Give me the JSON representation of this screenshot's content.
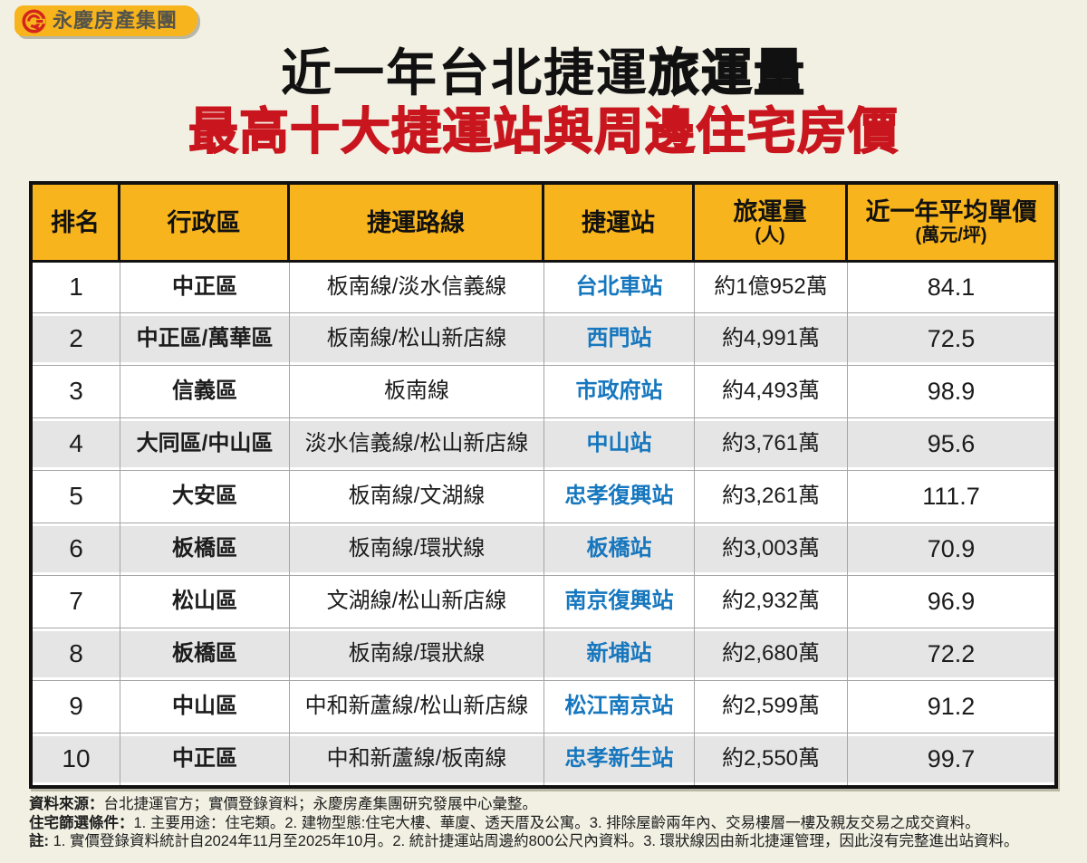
{
  "colors": {
    "page_bg": "#F2F0E3",
    "brand_yellow": "#F8B41C",
    "title_red": "#C9161E",
    "station_blue": "#1677BE",
    "alt_row_gray": "#E5E5E5",
    "logo_red": "#D3251C"
  },
  "logo": {
    "brand": "永慶房產集團"
  },
  "title": {
    "line1_normal": "近一年台北捷運",
    "line1_heavy": "旅運量",
    "line2": "最高十大捷運站與周邊住宅房價"
  },
  "table": {
    "header": {
      "rank": "排名",
      "district": "行政區",
      "lines": "捷運路線",
      "station": "捷運站",
      "ridership_main": "旅運量",
      "ridership_sub": "(人)",
      "price_main": "近一年平均單價",
      "price_sub": "(萬元/坪)"
    },
    "rows": [
      {
        "rank": "1",
        "district": "中正區",
        "lines": "板南線/淡水信義線",
        "station": "台北車站",
        "ridership": "約1億952萬",
        "price": "84.1"
      },
      {
        "rank": "2",
        "district": "中正區/萬華區",
        "lines": "板南線/松山新店線",
        "station": "西門站",
        "ridership": "約4,991萬",
        "price": "72.5"
      },
      {
        "rank": "3",
        "district": "信義區",
        "lines": "板南線",
        "station": "市政府站",
        "ridership": "約4,493萬",
        "price": "98.9"
      },
      {
        "rank": "4",
        "district": "大同區/中山區",
        "lines": "淡水信義線/松山新店線",
        "station": "中山站",
        "ridership": "約3,761萬",
        "price": "95.6"
      },
      {
        "rank": "5",
        "district": "大安區",
        "lines": "板南線/文湖線",
        "station": "忠孝復興站",
        "ridership": "約3,261萬",
        "price": "111.7"
      },
      {
        "rank": "6",
        "district": "板橋區",
        "lines": "板南線/環狀線",
        "station": "板橋站",
        "ridership": "約3,003萬",
        "price": "70.9"
      },
      {
        "rank": "7",
        "district": "松山區",
        "lines": "文湖線/松山新店線",
        "station": "南京復興站",
        "ridership": "約2,932萬",
        "price": "96.9"
      },
      {
        "rank": "8",
        "district": "板橋區",
        "lines": "板南線/環狀線",
        "station": "新埔站",
        "ridership": "約2,680萬",
        "price": "72.2"
      },
      {
        "rank": "9",
        "district": "中山區",
        "lines": "中和新蘆線/松山新店線",
        "station": "松江南京站",
        "ridership": "約2,599萬",
        "price": "91.2"
      },
      {
        "rank": "10",
        "district": "中正區",
        "lines": "中和新蘆線/板南線",
        "station": "忠孝新生站",
        "ridership": "約2,550萬",
        "price": "99.7"
      }
    ]
  },
  "footer": {
    "source_label": "資料來源：",
    "source_text": "台北捷運官方；實價登錄資料；永慶房產集團研究發展中心彙整。",
    "filter_label": "住宅篩選條件：",
    "filter_text": "1. 主要用途：住宅類。2. 建物型態:住宅大樓、華廈、透天厝及公寓。3. 排除屋齡兩年內、交易樓層一樓及親友交易之成交資料。",
    "note_label": "註:",
    "note_text": "1. 實價登錄資料統計自2024年11月至2025年10月。2. 統計捷運站周邊約800公尺內資料。3. 環狀線因由新北捷運管理，因此沒有完整進出站資料。"
  },
  "chart_data": {
    "type": "table",
    "title": "近一年台北捷運旅運量 最高十大捷運站與周邊住宅房價",
    "columns": [
      "排名",
      "行政區",
      "捷運路線",
      "捷運站",
      "旅運量(人)",
      "近一年平均單價(萬元/坪)"
    ],
    "rows": [
      [
        "1",
        "中正區",
        "板南線/淡水信義線",
        "台北車站",
        "約1億952萬",
        84.1
      ],
      [
        "2",
        "中正區/萬華區",
        "板南線/松山新店線",
        "西門站",
        "約4,991萬",
        72.5
      ],
      [
        "3",
        "信義區",
        "板南線",
        "市政府站",
        "約4,493萬",
        98.9
      ],
      [
        "4",
        "大同區/中山區",
        "淡水信義線/松山新店線",
        "中山站",
        "約3,761萬",
        95.6
      ],
      [
        "5",
        "大安區",
        "板南線/文湖線",
        "忠孝復興站",
        "約3,261萬",
        111.7
      ],
      [
        "6",
        "板橋區",
        "板南線/環狀線",
        "板橋站",
        "約3,003萬",
        70.9
      ],
      [
        "7",
        "松山區",
        "文湖線/松山新店線",
        "南京復興站",
        "約2,932萬",
        96.9
      ],
      [
        "8",
        "板橋區",
        "板南線/環狀線",
        "新埔站",
        "約2,680萬",
        72.2
      ],
      [
        "9",
        "中山區",
        "中和新蘆線/松山新店線",
        "松江南京站",
        "約2,599萬",
        91.2
      ],
      [
        "10",
        "中正區",
        "中和新蘆線/板南線",
        "忠孝新生站",
        "約2,550萬",
        99.7
      ]
    ]
  }
}
